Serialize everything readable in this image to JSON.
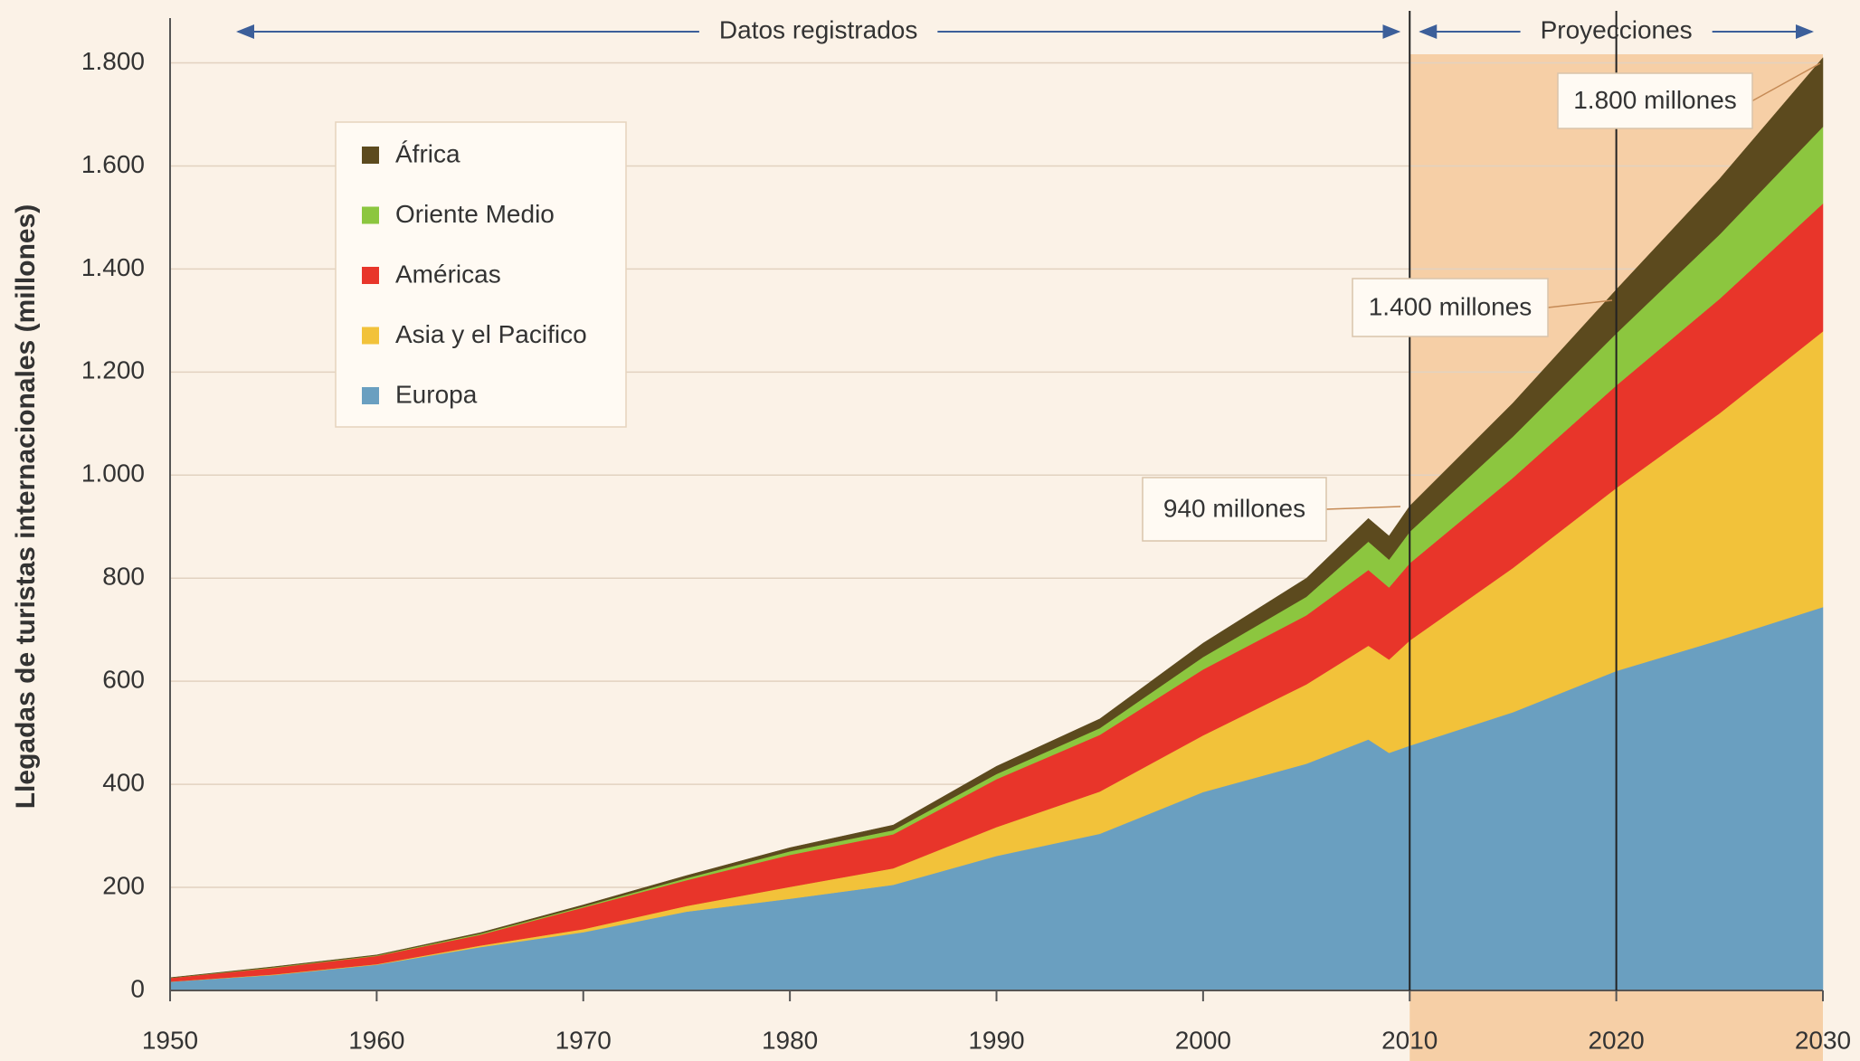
{
  "chart_data": {
    "type": "stacked_area",
    "y_label": "Llegadas de turistas internacionales (millones)",
    "x": [
      1950,
      1955,
      1960,
      1965,
      1970,
      1975,
      1980,
      1985,
      1990,
      1995,
      2000,
      2005,
      2008,
      2009,
      2010,
      2015,
      2020,
      2025,
      2030
    ],
    "series": [
      {
        "name": "Europa",
        "color": "#6a9fc0",
        "values": [
          17,
          30,
          50,
          84,
          113,
          153,
          178,
          205,
          261,
          304,
          385,
          440,
          487,
          461,
          475,
          540,
          620,
          680,
          744
        ]
      },
      {
        "name": "Asia y el Pacifico",
        "color": "#f2c23a",
        "values": [
          0.2,
          1,
          1,
          3,
          6,
          11,
          23,
          32,
          56,
          82,
          110,
          154,
          182,
          181,
          204,
          280,
          355,
          440,
          535
        ]
      },
      {
        "name": "Américas",
        "color": "#e8352a",
        "values": [
          7,
          13,
          16,
          21,
          42,
          50,
          62,
          66,
          93,
          110,
          128,
          134,
          147,
          140,
          150,
          175,
          199,
          222,
          248
        ]
      },
      {
        "name": "Oriente Medio",
        "color": "#8cc63f",
        "values": [
          0.2,
          1,
          1,
          2,
          2,
          4,
          7,
          8,
          10,
          13,
          24,
          36,
          55,
          54,
          61,
          80,
          101,
          125,
          149
        ]
      },
      {
        "name": "África",
        "color": "#5c4a1e",
        "values": [
          0.5,
          1,
          1,
          2,
          3,
          5,
          7,
          10,
          15,
          18,
          27,
          36,
          45,
          46,
          50,
          65,
          85,
          108,
          134
        ]
      }
    ],
    "xlim": [
      1950,
      2030
    ],
    "xticks": [
      1950,
      1960,
      1970,
      1980,
      1990,
      2000,
      2010,
      2020,
      2030
    ],
    "ylim": [
      0,
      1800
    ],
    "yticks": [
      0,
      200,
      400,
      600,
      800,
      {
        "value": 1000,
        "label": "1.000"
      },
      {
        "value": 1200,
        "label": "1.200"
      },
      {
        "value": 1400,
        "label": "1.400"
      },
      {
        "value": 1600,
        "label": "1.600"
      },
      {
        "value": 1800,
        "label": "1.800"
      }
    ],
    "grid": true,
    "periods": [
      {
        "label": "Datos registrados",
        "range": [
          1950,
          2010
        ]
      },
      {
        "label": "Proyecciones",
        "range": [
          2010,
          2030
        ],
        "shaded": true
      }
    ],
    "vlines": [
      2010,
      2020
    ],
    "annotations": [
      "940 millones",
      "1.400 millones",
      "1.800 millones"
    ]
  }
}
